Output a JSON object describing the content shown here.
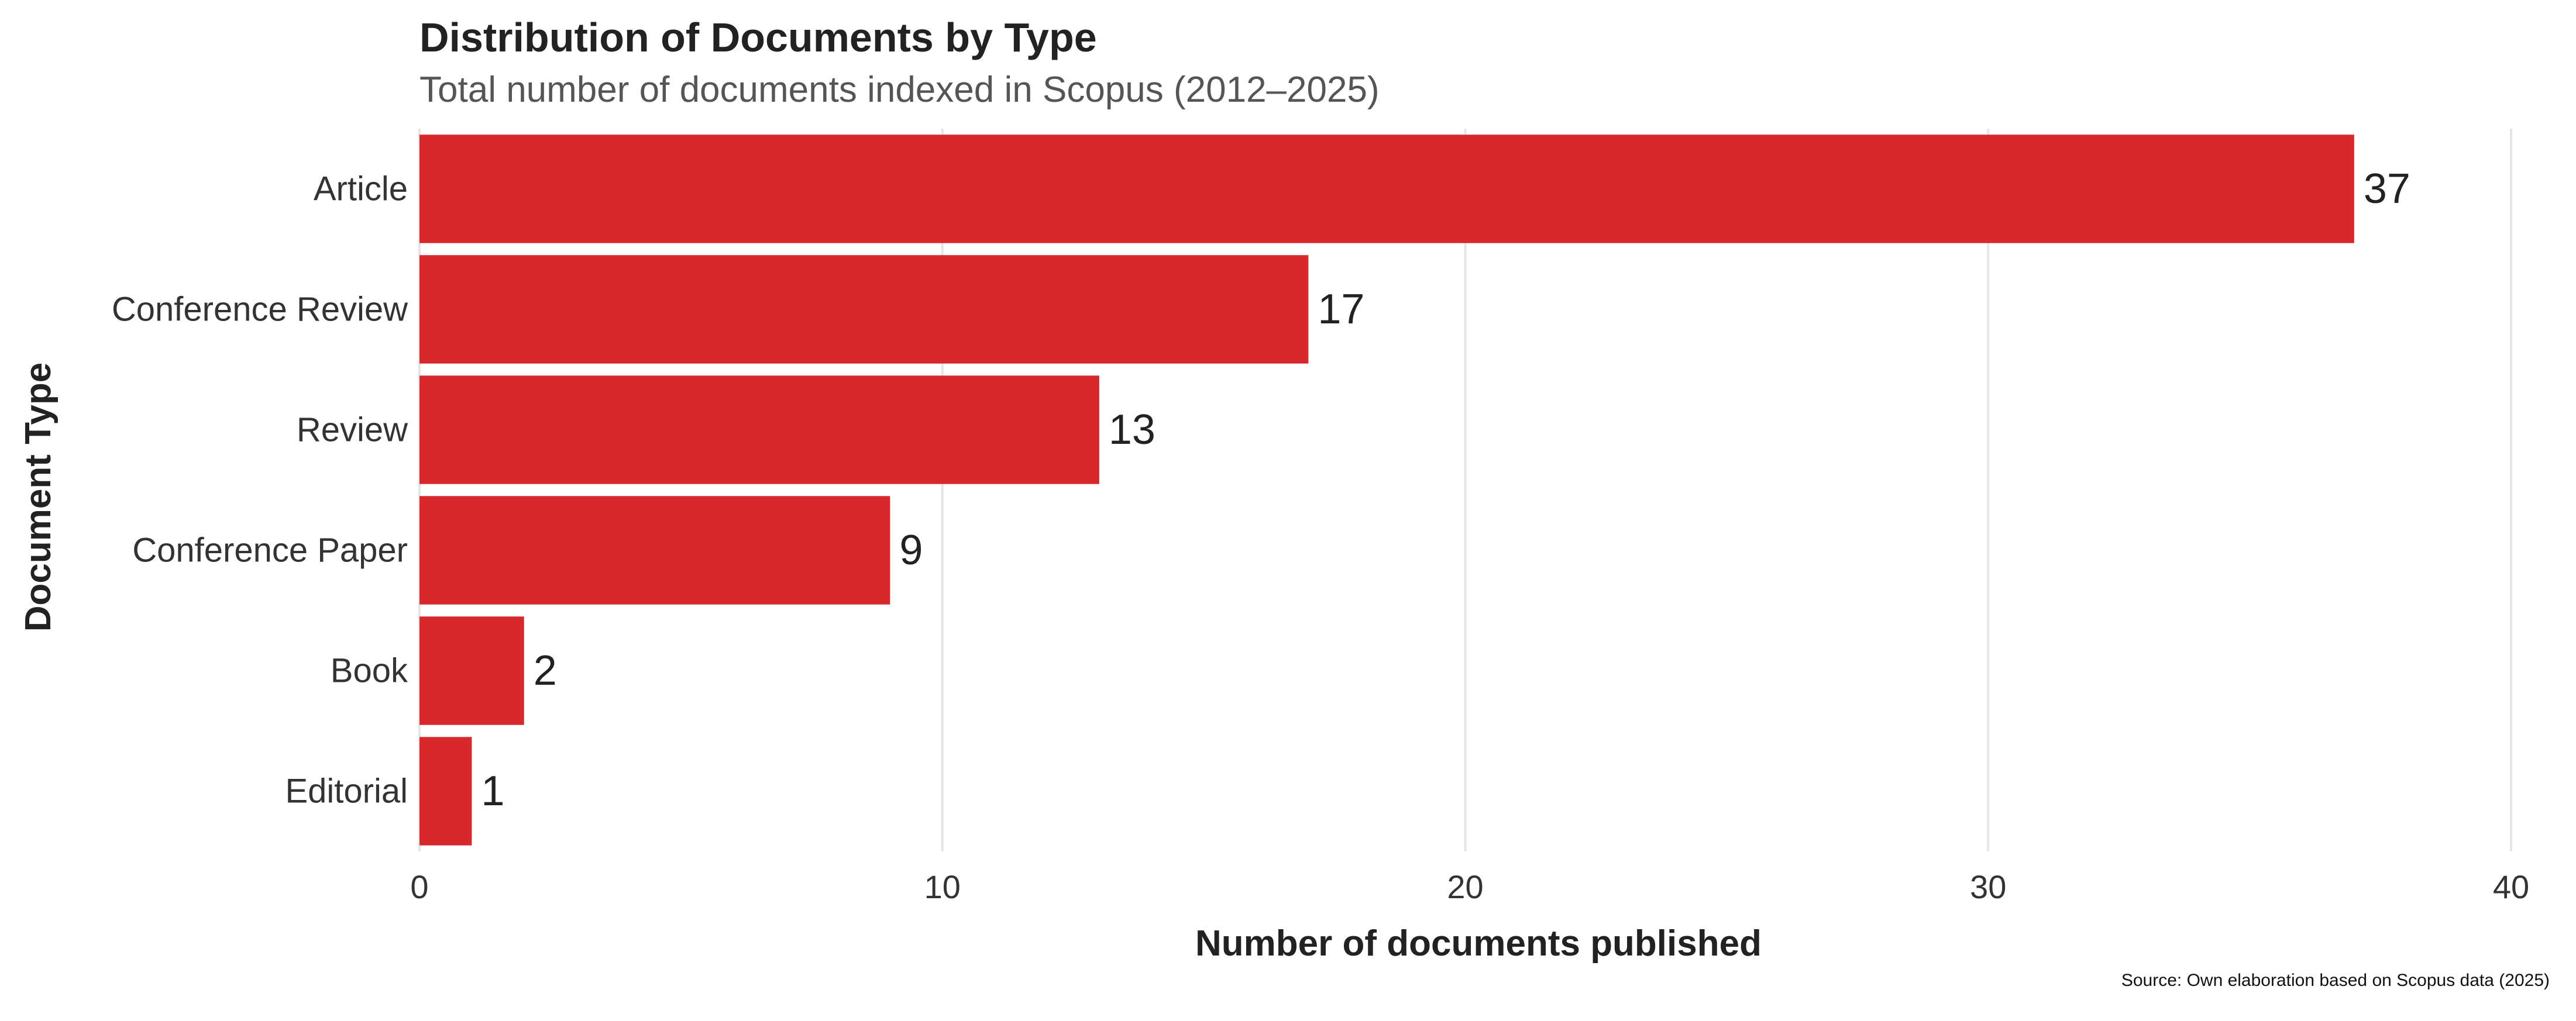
{
  "chart_data": {
    "type": "bar",
    "orientation": "horizontal",
    "title": "Distribution of Documents by Type",
    "subtitle": "Total number of documents indexed in Scopus (2012–2025)",
    "caption": "Source: Own elaboration based on Scopus data (2025)",
    "xlabel": "Number of documents published",
    "ylabel": "Document Type",
    "categories": [
      "Article",
      "Conference Review",
      "Review",
      "Conference Paper",
      "Book",
      "Editorial"
    ],
    "values": [
      37,
      17,
      13,
      9,
      2,
      1
    ],
    "xlim": [
      0,
      40
    ],
    "x_ticks": [
      0,
      10,
      20,
      30,
      40
    ],
    "grid": "vertical-major",
    "bar_color": "#d7282b",
    "grid_color": "#e6e6e6",
    "legend": "none"
  }
}
